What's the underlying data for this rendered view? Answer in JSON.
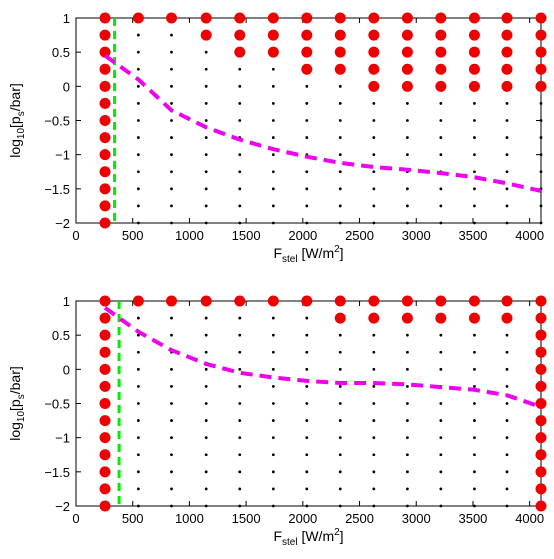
{
  "chart_data": [
    {
      "type": "scatter",
      "xlabel": {
        "base": "F",
        "sub": "stel",
        "mid": " [W/m",
        "sup": "2",
        "end": "]"
      },
      "ylabel": {
        "pre": "log",
        "sub1": "10",
        "mid": "[p",
        "sub2": "s",
        "end": "/bar]"
      },
      "xlim": [
        0,
        4100
      ],
      "ylim": [
        -2,
        1
      ],
      "x_ticks": [
        0,
        500,
        1000,
        1500,
        2000,
        2500,
        3000,
        3500,
        4000
      ],
      "x_tick_labels": [
        "0",
        "500",
        "1000",
        "1500",
        "2000",
        "2500",
        "3000",
        "3500",
        "4000"
      ],
      "y_ticks": [
        -2,
        -1.5,
        -1,
        -0.5,
        0,
        0.5,
        1
      ],
      "y_tick_labels": [
        "−2",
        "−1.5",
        "−1",
        "−0.5",
        "0",
        "0.5",
        "1"
      ],
      "grid": false,
      "grid_x": [
        256,
        550,
        842,
        1148,
        1444,
        1740,
        2035,
        2330,
        2626,
        2922,
        3217,
        3513,
        3800,
        4100
      ],
      "grid_y": [
        1,
        0.75,
        0.5,
        0.25,
        0,
        -0.25,
        -0.5,
        -0.75,
        -1,
        -1.25,
        -1.5,
        -1.75,
        -2
      ],
      "red_threshold_index": [
        99,
        0,
        0,
        1,
        2,
        2,
        3,
        3,
        4,
        4,
        4,
        4,
        4,
        4
      ],
      "vline_x": 340,
      "boundary": {
        "x": [
          256,
          550,
          842,
          1148,
          1444,
          1740,
          2035,
          2330,
          2626,
          2922,
          3217,
          3513,
          3800,
          4100
        ],
        "y": [
          0.45,
          0.1,
          -0.35,
          -0.6,
          -0.78,
          -0.92,
          -1.03,
          -1.12,
          -1.18,
          -1.22,
          -1.27,
          -1.33,
          -1.42,
          -1.53
        ]
      },
      "colors": {
        "red": "#ee0000",
        "black": "#000000",
        "green": "#00ee00",
        "magenta": "#ee00ee"
      }
    },
    {
      "type": "scatter",
      "xlabel": {
        "base": "F",
        "sub": "stel",
        "mid": " [W/m",
        "sup": "2",
        "end": "]"
      },
      "ylabel": {
        "pre": "log",
        "sub1": "10",
        "mid": "[p",
        "sub2": "s",
        "end": "/bar]"
      },
      "xlim": [
        0,
        4100
      ],
      "ylim": [
        -2,
        1
      ],
      "x_ticks": [
        0,
        500,
        1000,
        1500,
        2000,
        2500,
        3000,
        3500,
        4000
      ],
      "x_tick_labels": [
        "0",
        "500",
        "1000",
        "1500",
        "2000",
        "2500",
        "3000",
        "3500",
        "4000"
      ],
      "y_ticks": [
        -2,
        -1.5,
        -1,
        -0.5,
        0,
        0.5,
        1
      ],
      "y_tick_labels": [
        "−2",
        "−1.5",
        "−1",
        "−0.5",
        "0",
        "0.5",
        "1"
      ],
      "grid": false,
      "grid_x": [
        256,
        550,
        842,
        1148,
        1444,
        1740,
        2035,
        2330,
        2626,
        2922,
        3217,
        3513,
        3800,
        4100
      ],
      "grid_y": [
        1,
        0.75,
        0.5,
        0.25,
        0,
        -0.25,
        -0.5,
        -0.75,
        -1,
        -1.25,
        -1.5,
        -1.75,
        -2
      ],
      "red_threshold_index": [
        99,
        0,
        0,
        0,
        0,
        0,
        0,
        1,
        1,
        1,
        1,
        1,
        1,
        99
      ],
      "vline_x": 380,
      "boundary": {
        "x": [
          256,
          550,
          842,
          1148,
          1444,
          1740,
          2035,
          2330,
          2626,
          2922,
          3217,
          3513,
          3800,
          4100
        ],
        "y": [
          0.9,
          0.55,
          0.28,
          0.08,
          -0.05,
          -0.12,
          -0.17,
          -0.2,
          -0.2,
          -0.22,
          -0.26,
          -0.3,
          -0.38,
          -0.55
        ]
      },
      "colors": {
        "red": "#ee0000",
        "black": "#000000",
        "green": "#00ee00",
        "magenta": "#ee00ee"
      }
    }
  ]
}
